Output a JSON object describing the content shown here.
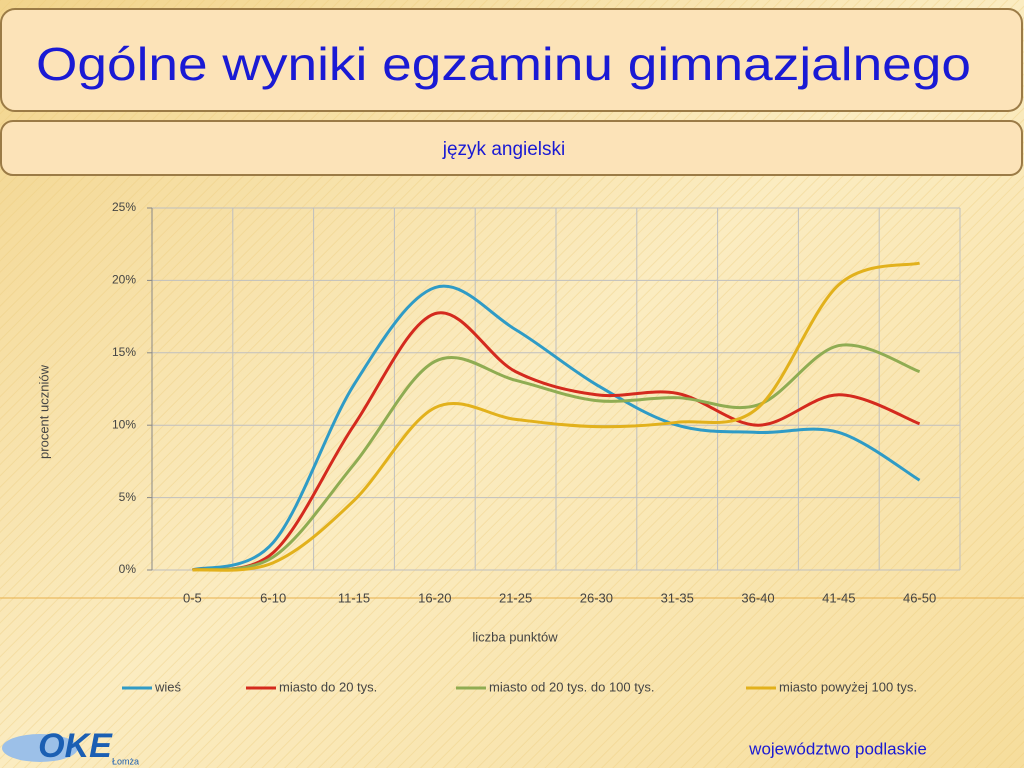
{
  "chart_data": {
    "type": "line",
    "title": "Ogólne wyniki egzaminu gimnazjalnego",
    "subtitle": "język angielski",
    "x_label": "liczba punktów",
    "y_label": "procent  uczniów",
    "categories": [
      "0-5",
      "6-10",
      "11-15",
      "16-20",
      "21-25",
      "26-30",
      "31-35",
      "36-40",
      "41-45",
      "46-50"
    ],
    "series": [
      {
        "name": "wieś",
        "color": "#2f9bc6",
        "values": [
          0,
          1.9,
          12.8,
          19.5,
          16.6,
          12.8,
          10.0,
          9.5,
          9.5,
          6.2
        ]
      },
      {
        "name": "miasto do 20 tys.",
        "color": "#d42a1e",
        "values": [
          0,
          1.2,
          10.0,
          17.7,
          13.7,
          12.1,
          12.2,
          10.0,
          12.1,
          10.1
        ]
      },
      {
        "name": "miasto od 20 tys. do 100 tys.",
        "color": "#8fac52",
        "values": [
          0,
          0.9,
          7.3,
          14.4,
          13.1,
          11.7,
          11.9,
          11.4,
          15.5,
          13.7
        ]
      },
      {
        "name": "miasto powyżej 100 tys.",
        "color": "#e2b11c",
        "values": [
          0,
          0.5,
          4.8,
          11.2,
          10.4,
          9.9,
          10.2,
          11.2,
          19.7,
          21.2
        ]
      }
    ],
    "ylim": [
      0,
      25
    ],
    "yticks": [
      {
        "value": 0,
        "label": "0%"
      },
      {
        "value": 5,
        "label": "5%"
      },
      {
        "value": 10,
        "label": "10%"
      },
      {
        "value": 15,
        "label": "15%"
      },
      {
        "value": 20,
        "label": "20%"
      },
      {
        "value": 25,
        "label": "25%"
      }
    ],
    "grid": true,
    "legend": "bottom"
  },
  "footer": "województwo podlaskie",
  "logo": {
    "text": "OKE",
    "sub": "Łomża"
  }
}
